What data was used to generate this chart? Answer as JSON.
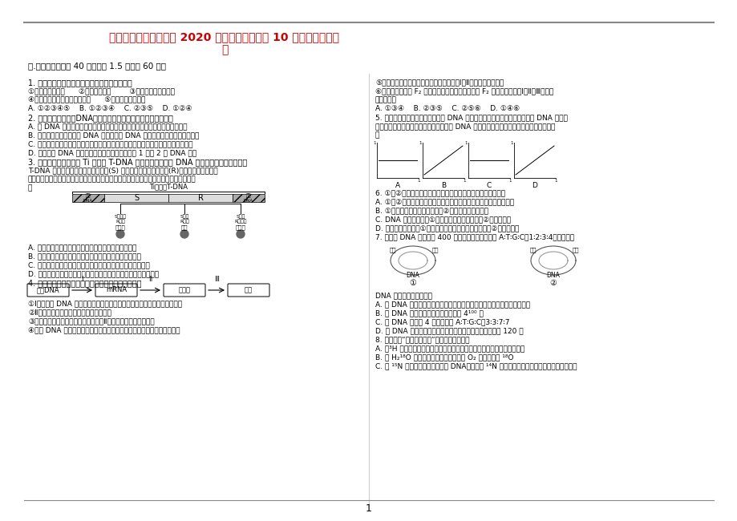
{
  "title_line1": "山西省太原市第五中学 2020 届高三生物上学期 10 月阶段性检测试",
  "title_line2": "题",
  "title_color": "#cc0000",
  "bg_color": "#ffffff",
  "text_color": "#000000",
  "border_color": "#888888",
  "page_number": "1",
  "section1_title": "一.单项选择题（共 40 题，每题 1.5 分，共 60 分）"
}
